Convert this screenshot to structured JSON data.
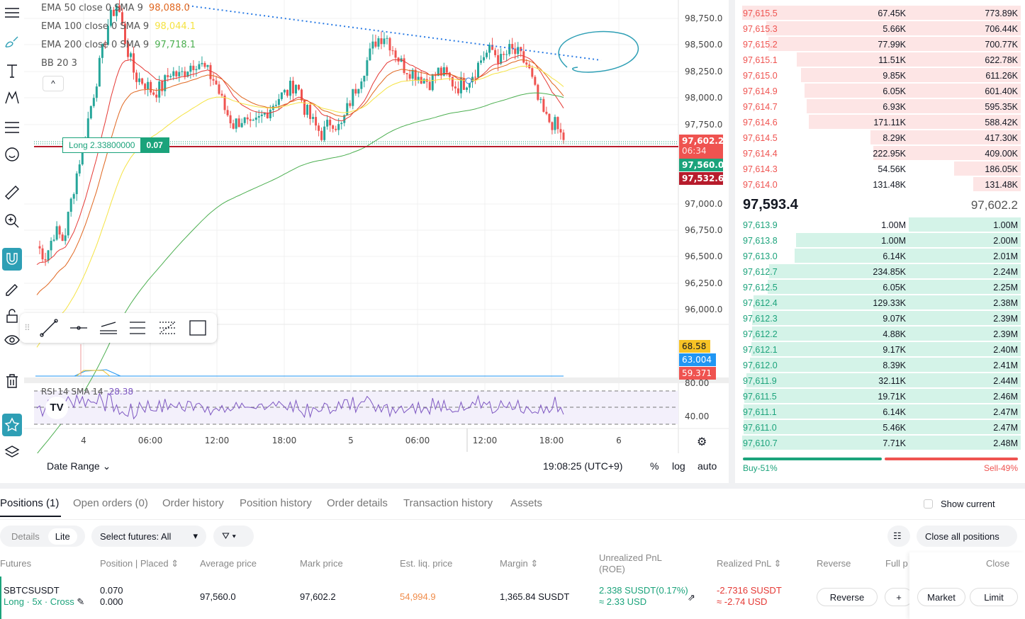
{
  "legend": [
    {
      "label": "EMA 50 close 0 SMA 9",
      "value": "98,088.0",
      "color": "#e0661f"
    },
    {
      "label": "EMA 100 close 0 SMA 9",
      "value": "98,044.1",
      "color": "#f5e342"
    },
    {
      "label": "EMA 200 close 0 SMA 9",
      "value": "97,718.1",
      "color": "#4caf50"
    },
    {
      "label": "BB 20 3",
      "value": "",
      "color": ""
    }
  ],
  "collapse_icon": "^",
  "price_axis": [
    "98,750.0",
    "98,500.0",
    "98,250.0",
    "98,000.0",
    "97,750.0",
    "97,000.0",
    "96,750.0",
    "96,500.0",
    "96,250.0",
    "96,000.0"
  ],
  "price_tags": {
    "last": "97,602.2",
    "countdown": "06:34",
    "entry": "97,560.0",
    "other": "97,532.6",
    "ind1": "68.58",
    "ind2": "63.004",
    "ind3": "59.371",
    "rsi_top": "80.00",
    "rsi_mid": "40.00"
  },
  "position_label": {
    "text": "Long 2.33800000",
    "qty": "0.07"
  },
  "rsi_legend": {
    "label": "RSI 14 SMA 14",
    "value": "28.38"
  },
  "time_axis": [
    "4",
    "06:00",
    "12:00",
    "18:00",
    "5",
    "06:00",
    "12:00",
    "18:00",
    "6"
  ],
  "bottom_bar": {
    "date_range": "Date Range",
    "clock": "19:08:25 (UTC+9)",
    "percent": "%",
    "log": "log",
    "auto": "auto"
  },
  "closes": [
    96600,
    96500,
    96750,
    96650,
    97100,
    97500,
    97900,
    98300,
    98700,
    98900,
    98500,
    98200,
    98150,
    98050,
    98100,
    98250,
    98200,
    98300,
    98350,
    98250,
    98150,
    97900,
    97750,
    97800,
    97700,
    97800,
    97900,
    98000,
    98050,
    98150,
    97900,
    97750,
    97650,
    97800,
    97700,
    97950,
    98150,
    98350,
    98550,
    98600,
    98450,
    98300,
    98250,
    98200,
    98150,
    98250,
    98200,
    98100,
    98150,
    98250,
    98400,
    98450,
    98350,
    98450,
    98400,
    98300,
    98000,
    97800,
    97750,
    97600
  ],
  "orderbook": {
    "asks": [
      [
        "97,615.5",
        "67.45K",
        "773.89K"
      ],
      [
        "97,615.3",
        "5.66K",
        "706.44K"
      ],
      [
        "97,615.2",
        "77.99K",
        "700.77K"
      ],
      [
        "97,615.1",
        "11.51K",
        "622.78K"
      ],
      [
        "97,615.0",
        "9.85K",
        "611.26K"
      ],
      [
        "97,614.9",
        "6.05K",
        "601.40K"
      ],
      [
        "97,614.7",
        "6.93K",
        "595.35K"
      ],
      [
        "97,614.6",
        "171.11K",
        "588.42K"
      ],
      [
        "97,614.5",
        "8.29K",
        "417.30K"
      ],
      [
        "97,614.4",
        "222.95K",
        "409.00K"
      ],
      [
        "97,614.3",
        "54.56K",
        "186.05K"
      ],
      [
        "97,614.0",
        "131.48K",
        "131.48K"
      ]
    ],
    "mid": "97,593.4",
    "mark": "97,602.2",
    "bids": [
      [
        "97,613.9",
        "1.00M",
        "1.00M"
      ],
      [
        "97,613.8",
        "1.00M",
        "2.00M"
      ],
      [
        "97,613.0",
        "6.14K",
        "2.01M"
      ],
      [
        "97,612.7",
        "234.85K",
        "2.24M"
      ],
      [
        "97,612.5",
        "6.05K",
        "2.25M"
      ],
      [
        "97,612.4",
        "129.33K",
        "2.38M"
      ],
      [
        "97,612.3",
        "9.07K",
        "2.39M"
      ],
      [
        "97,612.2",
        "4.88K",
        "2.39M"
      ],
      [
        "97,612.1",
        "9.17K",
        "2.40M"
      ],
      [
        "97,612.0",
        "8.39K",
        "2.41M"
      ],
      [
        "97,611.9",
        "32.11K",
        "2.44M"
      ],
      [
        "97,611.5",
        "19.71K",
        "2.46M"
      ],
      [
        "97,611.1",
        "6.14K",
        "2.47M"
      ],
      [
        "97,611.0",
        "5.46K",
        "2.47M"
      ],
      [
        "97,610.7",
        "7.71K",
        "2.48M"
      ]
    ],
    "ask_totals": [
      773.89,
      706.44,
      700.77,
      622.78,
      611.26,
      601.4,
      595.35,
      588.42,
      417.3,
      409.0,
      186.05,
      131.48
    ],
    "bid_totals": [
      1.0,
      2.0,
      2.01,
      2.24,
      2.25,
      2.38,
      2.39,
      2.39,
      2.4,
      2.41,
      2.44,
      2.46,
      2.47,
      2.47,
      2.48
    ],
    "buy": "Buy-51%",
    "sell": "Sell-49%",
    "buy_pct": 51
  },
  "tabs": [
    "Positions (1)",
    "Open orders (0)",
    "Order history",
    "Position history",
    "Order details",
    "Transaction history",
    "Assets"
  ],
  "show_current": "Show current",
  "filters": {
    "details": "Details",
    "lite": "Lite",
    "select": "Select futures: All",
    "close_all": "Close all positions"
  },
  "columns": [
    "Futures",
    "Position | Placed ⇕",
    "Average price",
    "Mark price",
    "Est. liq. price",
    "Margin ⇕",
    "Unrealized PnL (ROE)",
    "Realized PnL ⇕",
    "Reverse",
    "Full p",
    "Close"
  ],
  "position": {
    "symbol": "SBTCSUSDT",
    "tags": "Long · 5x · Cross",
    "position": "0.070",
    "placed": "0.000",
    "avg": "97,560.0",
    "mark": "97,602.2",
    "liq": "54,994.9",
    "margin": "1,365.84 SUSDT",
    "upnl": "2.338 SUSDT(0.17%)",
    "upnl_usd": "≈ 2.33 USD",
    "rpnl": "-2.7316 SUSDT",
    "rpnl_usd": "≈ -2.74 USD",
    "reverse": "Reverse",
    "plus": "+",
    "market": "Market",
    "limit": "Limit"
  },
  "colors": {
    "up": "#26a69a",
    "down": "#ef5350",
    "accent": "#2e9fb5",
    "green": "#1ba37b",
    "red": "#e53935"
  }
}
